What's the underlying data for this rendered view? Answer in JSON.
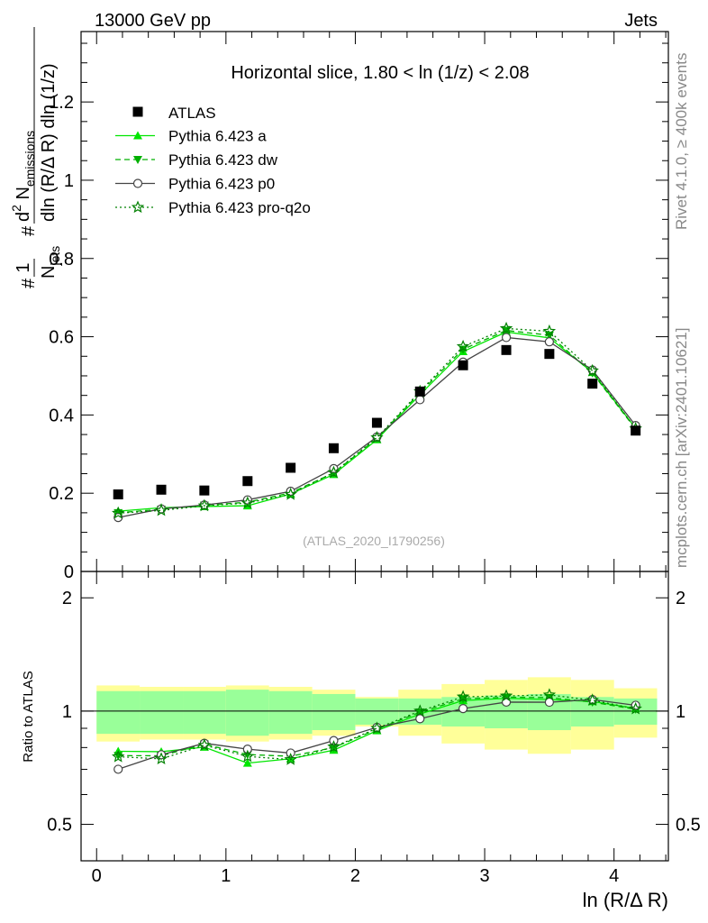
{
  "header": {
    "left": "13000 GeV pp",
    "right": "Jets"
  },
  "side_labels": {
    "rivet": "Rivet 4.1.0, ≥ 400k events",
    "mcplots": "mcplots.cern.ch [arXiv:2401.10621]"
  },
  "chart_data": {
    "type": "line",
    "title": "Horizontal slice, 1.80 < ln (1/z) < 2.08",
    "watermark": "(ATLAS_2020_I1790256)",
    "xlabel": "ln (R/Δ R)",
    "ylabel_parts": {
      "hash1": "#",
      "one": "1",
      "njets": "N",
      "njets_sub": "jets",
      "hash2": "#",
      "d2": "d",
      "d2_sup": "2",
      "nem": " N",
      "nem_sub": "emissions",
      "denominator": "dln (R/Δ R) dln (1/z)"
    },
    "ratio_ylabel": "Ratio to ATLAS",
    "xlim": [
      -0.12,
      4.42
    ],
    "ylim": [
      0,
      1.38
    ],
    "ratio_ylim": [
      0.4,
      2.35
    ],
    "x_ticks": [
      "0",
      "1",
      "2",
      "3",
      "4"
    ],
    "x_tick_values": [
      0,
      1,
      2,
      3,
      4
    ],
    "y_ticks": [
      "0",
      "0.2",
      "0.4",
      "0.6",
      "0.8",
      "1",
      "1.2"
    ],
    "y_tick_values": [
      0,
      0.2,
      0.4,
      0.6,
      0.8,
      1.0,
      1.2
    ],
    "ratio_ticks": [
      "0.5",
      "1",
      "2"
    ],
    "ratio_tick_values": [
      0.5,
      1,
      2
    ],
    "x": [
      0.167,
      0.5,
      0.833,
      1.167,
      1.5,
      1.833,
      2.167,
      2.5,
      2.833,
      3.167,
      3.5,
      3.833,
      4.167
    ],
    "bin_edges": [
      0,
      0.333,
      0.667,
      1.0,
      1.333,
      1.667,
      2.0,
      2.333,
      2.667,
      3.0,
      3.333,
      3.667,
      4.0,
      4.333
    ],
    "reference": {
      "name": "ATLAS",
      "values": [
        0.197,
        0.209,
        0.207,
        0.231,
        0.265,
        0.315,
        0.38,
        0.46,
        0.527,
        0.566,
        0.556,
        0.48,
        0.36
      ]
    },
    "band_inner": [
      0.13,
      0.13,
      0.13,
      0.14,
      0.13,
      0.11,
      0.08,
      0.08,
      0.09,
      0.1,
      0.11,
      0.09,
      0.08
    ],
    "band_outer": [
      0.17,
      0.16,
      0.16,
      0.17,
      0.16,
      0.14,
      0.09,
      0.14,
      0.18,
      0.21,
      0.23,
      0.21,
      0.15
    ],
    "series": [
      {
        "name": "Pythia 6.423 a",
        "color": "#00e600",
        "dash": "",
        "marker": "triangle-up",
        "values": [
          0.154,
          0.163,
          0.166,
          0.168,
          0.198,
          0.248,
          0.337,
          0.452,
          0.562,
          0.612,
          0.597,
          0.509,
          0.366
        ]
      },
      {
        "name": "Pythia 6.423 dw",
        "color": "#00b000",
        "dash": "6,4",
        "marker": "triangle-down",
        "values": [
          0.15,
          0.159,
          0.169,
          0.177,
          0.201,
          0.252,
          0.34,
          0.457,
          0.568,
          0.616,
          0.604,
          0.507,
          0.364
        ]
      },
      {
        "name": "Pythia 6.423 p0",
        "color": "#444444",
        "dash": "",
        "marker": "circle-open",
        "values": [
          0.138,
          0.16,
          0.17,
          0.183,
          0.205,
          0.263,
          0.344,
          0.439,
          0.535,
          0.598,
          0.587,
          0.515,
          0.373
        ]
      },
      {
        "name": "Pythia 6.423 pro-q2o",
        "color": "#008000",
        "dash": "2,3",
        "marker": "star-open",
        "values": [
          0.149,
          0.156,
          0.168,
          0.175,
          0.197,
          0.253,
          0.342,
          0.46,
          0.575,
          0.621,
          0.614,
          0.513,
          0.365
        ]
      }
    ],
    "legend_position": "top-left",
    "ratio_reference_line": 1
  }
}
